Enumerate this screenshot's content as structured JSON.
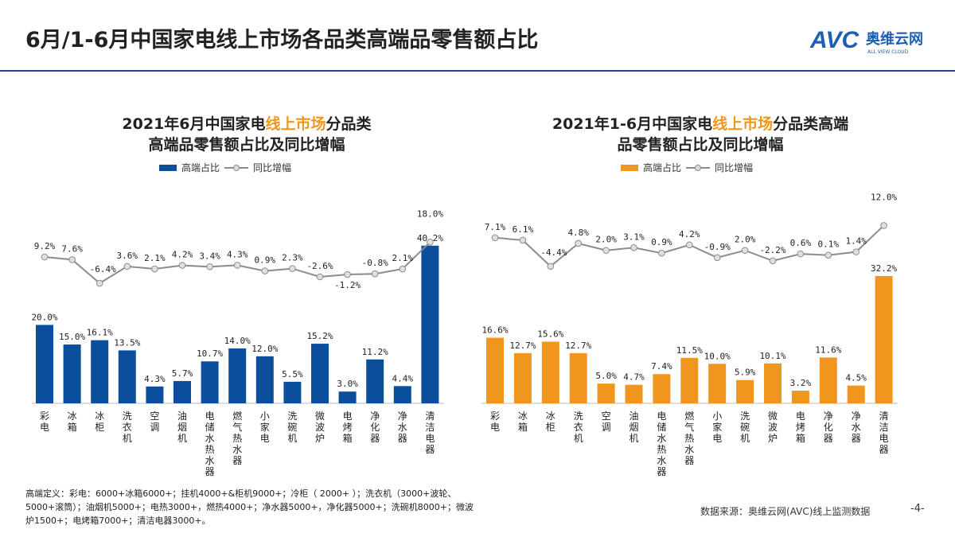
{
  "page": {
    "title": "6月/1-6月中国家电线上市场各品类高端品零售额占比",
    "logo_text": "AVC",
    "logo_cn": "奥维云网",
    "logo_en": "ALL VIEW CLOUD",
    "footnote": "高端定义：彩电：6000+冰箱6000+；挂机4000+&柜机9000+；冷柜（ 2000+ ）；洗衣机（3000+波轮、5000+滚筒）；油烟机5000+；电热3000+，燃热4000+；净水器5000+，净化器5000+；洗碗机8000+；微波炉1500+；电烤箱7000+；清洁电器3000+。",
    "source": "数据来源：奥维云网(AVC)线上监测数据",
    "page_number": "-4-"
  },
  "chart_data": [
    {
      "type": "bar+line",
      "title_pre": "2021年6月中国家电",
      "title_highlight": "线上市场",
      "title_post": "分品类",
      "title_line2": "高端品零售额占比及同比增幅",
      "legend": {
        "bar": "高端占比",
        "line": "同比增幅",
        "placement": "top"
      },
      "bar_color": "#0b4f9c",
      "line_color": "#8c8c8c",
      "categories": [
        "彩电",
        "冰箱",
        "冰柜",
        "洗衣机",
        "空调",
        "油烟机",
        "电储水热水器",
        "燃气热水器",
        "小家电",
        "洗碗机",
        "微波炉",
        "电烤箱",
        "净化器",
        "净水器",
        "清洁电器"
      ],
      "series": [
        {
          "name": "高端占比",
          "unit": "%",
          "values": [
            20.0,
            15.0,
            16.1,
            13.5,
            4.3,
            5.7,
            10.7,
            14.0,
            12.0,
            5.5,
            15.2,
            3.0,
            11.2,
            4.4,
            40.2
          ]
        },
        {
          "name": "同比增幅",
          "unit": "%",
          "values": [
            9.2,
            7.6,
            -6.4,
            3.6,
            2.1,
            4.2,
            3.4,
            4.3,
            0.9,
            2.3,
            -2.6,
            -1.2,
            -0.8,
            2.1,
            18.0
          ]
        }
      ]
    },
    {
      "type": "bar+line",
      "title_pre": "2021年1-6月中国家电",
      "title_highlight": "线上市场",
      "title_post": "分品类高端",
      "title_line2": "品零售额占比及同比增幅",
      "legend": {
        "bar": "高端占比",
        "line": "同比增幅",
        "placement": "top"
      },
      "bar_color": "#f0961e",
      "line_color": "#8c8c8c",
      "categories": [
        "彩电",
        "冰箱",
        "冰柜",
        "洗衣机",
        "空调",
        "油烟机",
        "电储水热水器",
        "燃气热水器",
        "小家电",
        "洗碗机",
        "微波炉",
        "电烤箱",
        "净化器",
        "净水器",
        "清洁电器"
      ],
      "series": [
        {
          "name": "高端占比",
          "unit": "%",
          "values": [
            16.6,
            12.7,
            15.6,
            12.7,
            5.0,
            4.7,
            7.4,
            11.5,
            10.0,
            5.9,
            10.1,
            3.2,
            11.6,
            4.5,
            32.2
          ]
        },
        {
          "name": "同比增幅",
          "unit": "%",
          "values": [
            7.1,
            6.1,
            -4.4,
            4.8,
            2.0,
            3.1,
            0.9,
            4.2,
            -0.9,
            2.0,
            -2.2,
            0.6,
            0.1,
            1.4,
            12.0
          ]
        }
      ]
    }
  ]
}
